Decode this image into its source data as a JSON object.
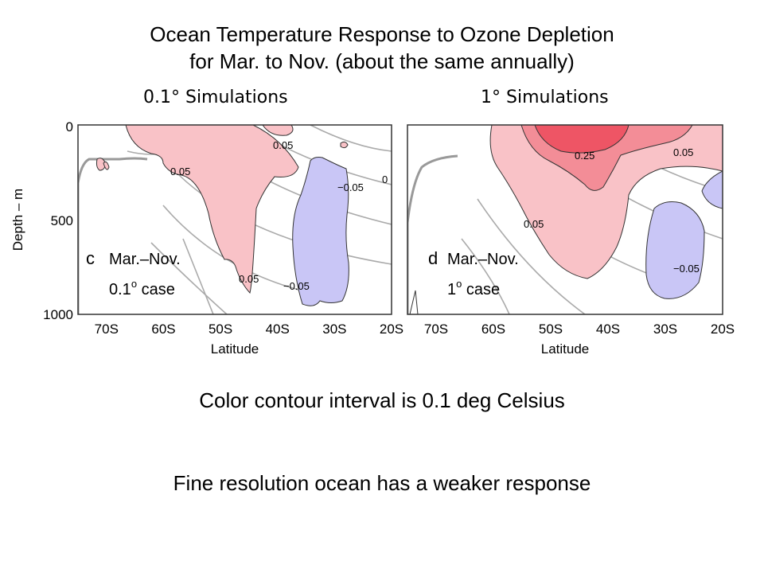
{
  "header": {
    "title_line1": "Ocean Temperature Response to Ozone Depletion",
    "title_line2": "for Mar. to Nov. (about the same annually)",
    "left_column": "0.1° Simulations",
    "right_column": "1° Simulations"
  },
  "captions": {
    "contour_interval": "Color contour interval is 0.1 deg Celsius",
    "conclusion": "Fine resolution ocean has a weaker response"
  },
  "colors": {
    "warm_light": "#f9c2c7",
    "warm_mid": "#f38d97",
    "warm_strong": "#ee5565",
    "cool": "#c9c6f6",
    "grey_contour": "#aaaaaa"
  },
  "chart_data": [
    {
      "type": "heatmap",
      "panel": "c",
      "season": "Mar.–Nov.",
      "case_label": "0.1",
      "case_suffix": "case",
      "xlabel": "Latitude",
      "ylabel": "Depth – m",
      "xlim": [
        -75,
        -20
      ],
      "ylim": [
        0,
        1000
      ],
      "xticks": [
        "70S",
        "60S",
        "50S",
        "40S",
        "30S",
        "20S"
      ],
      "yticks": [
        "0",
        "500",
        "1000"
      ],
      "contour_labels": [
        "0.05",
        "0.05",
        "0.05",
        "−0.05",
        "−0.05",
        "0"
      ]
    },
    {
      "type": "heatmap",
      "panel": "d",
      "season": "Mar.–Nov.",
      "case_label": "1",
      "case_suffix": "case",
      "xlabel": "Latitude",
      "xlim": [
        -75,
        -20
      ],
      "ylim": [
        0,
        1000
      ],
      "xticks": [
        "70S",
        "60S",
        "50S",
        "40S",
        "30S",
        "20S"
      ],
      "contour_labels": [
        "0.25",
        "0.05",
        "0.05",
        "−0.05"
      ]
    }
  ]
}
